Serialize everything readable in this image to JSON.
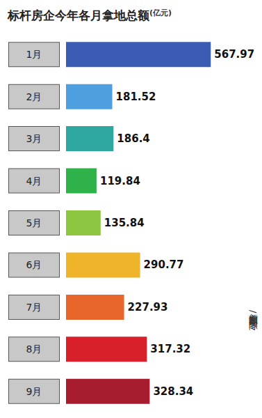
{
  "chart_data": {
    "type": "bar",
    "title": "标杆房企今年各月拿地总额",
    "subtitle": "(亿元)",
    "annotations": [
      "新京报制图/陈冬"
    ],
    "orientation": "horizontal",
    "categories": [
      "1月",
      "2月",
      "3月",
      "4月",
      "5月",
      "6月",
      "7月",
      "8月",
      "9月"
    ],
    "values": [
      567.97,
      181.52,
      186.4,
      119.84,
      135.84,
      290.77,
      227.93,
      317.32,
      328.34
    ],
    "colors": [
      "#3a5db3",
      "#4e9fe0",
      "#2ea7a0",
      "#2fb24a",
      "#8cc640",
      "#efb42a",
      "#e8662b",
      "#d8202a",
      "#a71d2f"
    ],
    "xlim": [
      0,
      600
    ],
    "data_labels": true,
    "tick_labels": "y",
    "grid": false
  }
}
